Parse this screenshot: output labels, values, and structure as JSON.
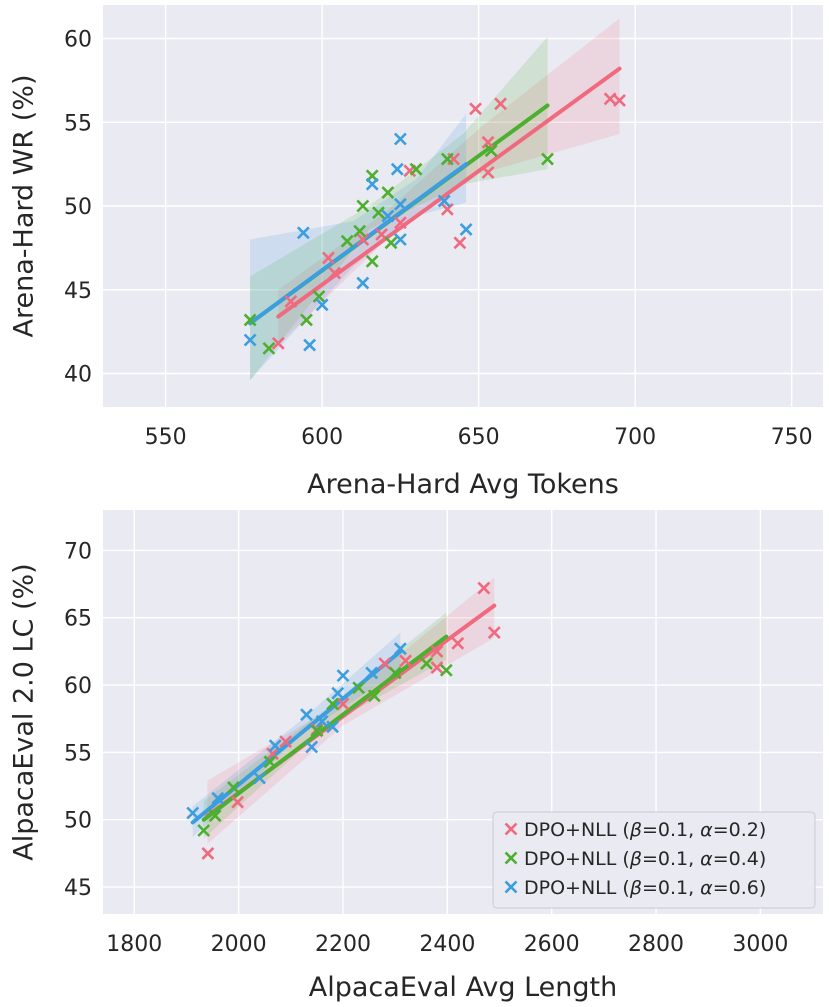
{
  "colors": {
    "pink": "#f0697f",
    "green": "#4daf2e",
    "blue": "#3a9ee0"
  },
  "legend": {
    "placement": "lower-right",
    "entries": [
      {
        "prefix": "DPO+NLL (",
        "beta": "β",
        "mid": "=0.1, ",
        "alpha": "α",
        "suffix": "=0.2)",
        "color": "pink"
      },
      {
        "prefix": "DPO+NLL (",
        "beta": "β",
        "mid": "=0.1, ",
        "alpha": "α",
        "suffix": "=0.4)",
        "color": "green"
      },
      {
        "prefix": "DPO+NLL (",
        "beta": "β",
        "mid": "=0.1, ",
        "alpha": "α",
        "suffix": "=0.6)",
        "color": "blue"
      }
    ]
  },
  "chart_data": [
    {
      "type": "scatter",
      "xlabel": "Arena-Hard Avg Tokens",
      "ylabel": "Arena-Hard WR (%)",
      "xlim": [
        530,
        760
      ],
      "ylim": [
        38,
        62
      ],
      "xticks": [
        550,
        600,
        650,
        700,
        750
      ],
      "yticks": [
        40,
        45,
        50,
        55,
        60
      ],
      "grid": true,
      "series": [
        {
          "color": "pink",
          "points": [
            [
              586,
              41.8
            ],
            [
              590,
              44.3
            ],
            [
              602,
              46.9
            ],
            [
              604,
              46
            ],
            [
              613,
              48
            ],
            [
              619,
              48.3
            ],
            [
              625,
              49
            ],
            [
              628,
              52.1
            ],
            [
              640,
              49.8
            ],
            [
              642,
              52.8
            ],
            [
              644,
              47.8
            ],
            [
              649,
              55.8
            ],
            [
              653,
              52
            ],
            [
              653,
              53.8
            ],
            [
              657,
              56.1
            ],
            [
              692,
              56.4
            ],
            [
              695,
              56.3
            ]
          ],
          "fit": {
            "x0": 586,
            "y0": 43.4,
            "x1": 695,
            "y1": 58.2
          },
          "band_lower": [
            [
              586,
              41.7
            ],
            [
              620,
              47.9
            ],
            [
              650,
              51.9
            ],
            [
              695,
              54.3
            ]
          ],
          "band_upper": [
            [
              586,
              45.0
            ],
            [
              620,
              49.6
            ],
            [
              650,
              54.6
            ],
            [
              695,
              61.2
            ]
          ]
        },
        {
          "color": "green",
          "points": [
            [
              577,
              43.2
            ],
            [
              583,
              41.5
            ],
            [
              595,
              43.2
            ],
            [
              599,
              44.6
            ],
            [
              608,
              47.9
            ],
            [
              612,
              48.5
            ],
            [
              613,
              50
            ],
            [
              616,
              51.8
            ],
            [
              616,
              46.7
            ],
            [
              618,
              49.6
            ],
            [
              621,
              50.8
            ],
            [
              622,
              47.8
            ],
            [
              630,
              52.2
            ],
            [
              640,
              52.8
            ],
            [
              654,
              53.3
            ],
            [
              672,
              52.8
            ]
          ],
          "fit": {
            "x0": 577,
            "y0": 43.0,
            "x1": 672,
            "y1": 56.0
          },
          "band_lower": [
            [
              577,
              39.6
            ],
            [
              615,
              48.6
            ],
            [
              645,
              51.3
            ],
            [
              672,
              52.2
            ]
          ],
          "band_upper": [
            [
              577,
              45.8
            ],
            [
              615,
              50.0
            ],
            [
              645,
              54.3
            ],
            [
              672,
              60.1
            ]
          ]
        },
        {
          "color": "blue",
          "points": [
            [
              577,
              42
            ],
            [
              594,
              48.4
            ],
            [
              596,
              41.7
            ],
            [
              600,
              44.1
            ],
            [
              613,
              45.4
            ],
            [
              616,
              51.3
            ],
            [
              621,
              49.4
            ],
            [
              624,
              52.2
            ],
            [
              625,
              50.1
            ],
            [
              625,
              48
            ],
            [
              625,
              54
            ],
            [
              639,
              50.3
            ],
            [
              646,
              48.6
            ]
          ],
          "fit": {
            "x0": 577,
            "y0": 43.0,
            "x1": 646,
            "y1": 52.5
          },
          "band_lower": [
            [
              577,
              39.6
            ],
            [
              610,
              46.4
            ],
            [
              630,
              49.4
            ],
            [
              646,
              50.2
            ]
          ],
          "band_upper": [
            [
              577,
              48.0
            ],
            [
              610,
              49.1
            ],
            [
              630,
              51.6
            ],
            [
              646,
              55.5
            ]
          ]
        }
      ]
    },
    {
      "type": "scatter",
      "xlabel": "AlpacaEval Avg Length",
      "ylabel": "AlpacaEval 2.0 LC (%)",
      "xlim": [
        1740,
        3120
      ],
      "ylim": [
        43,
        73
      ],
      "xticks": [
        1800,
        2000,
        2200,
        2400,
        2600,
        2800,
        3000
      ],
      "yticks": [
        45,
        50,
        55,
        60,
        65,
        70
      ],
      "grid": true,
      "series": [
        {
          "color": "pink",
          "points": [
            [
              1941,
              47.5
            ],
            [
              1998,
              51.3
            ],
            [
              2065,
              54.9
            ],
            [
              2090,
              55.8
            ],
            [
              2150,
              56.7
            ],
            [
              2200,
              58.6
            ],
            [
              2280,
              61.6
            ],
            [
              2320,
              61.8
            ],
            [
              2380,
              62.5
            ],
            [
              2380,
              61.3
            ],
            [
              2420,
              63.1
            ],
            [
              2470,
              67.2
            ],
            [
              2490,
              63.9
            ]
          ],
          "fit": {
            "x0": 1940,
            "y0": 50.3,
            "x1": 2490,
            "y1": 65.9
          },
          "band_lower": [
            [
              1940,
              48.2
            ],
            [
              2200,
              57.0
            ],
            [
              2490,
              63.5
            ]
          ],
          "band_upper": [
            [
              1940,
              52.9
            ],
            [
              2200,
              58.8
            ],
            [
              2490,
              68.0
            ]
          ]
        },
        {
          "color": "green",
          "points": [
            [
              1933,
              49.2
            ],
            [
              1955,
              50.3
            ],
            [
              1990,
              52.4
            ],
            [
              2060,
              54.3
            ],
            [
              2150,
              56.6
            ],
            [
              2180,
              58.6
            ],
            [
              2230,
              59.8
            ],
            [
              2260,
              59.2
            ],
            [
              2300,
              60.9
            ],
            [
              2360,
              61.6
            ],
            [
              2398,
              61.1
            ]
          ],
          "fit": {
            "x0": 1933,
            "y0": 50.0,
            "x1": 2398,
            "y1": 63.6
          },
          "band_lower": [
            [
              1933,
              48.6
            ],
            [
              2170,
              57.0
            ],
            [
              2398,
              61.9
            ]
          ],
          "band_upper": [
            [
              1933,
              51.4
            ],
            [
              2170,
              58.3
            ],
            [
              2398,
              65.4
            ]
          ]
        },
        {
          "color": "blue",
          "points": [
            [
              1912,
              50.5
            ],
            [
              1960,
              51.6
            ],
            [
              2040,
              53.1
            ],
            [
              2070,
              55.5
            ],
            [
              2130,
              57.8
            ],
            [
              2140,
              55.4
            ],
            [
              2160,
              57.3
            ],
            [
              2180,
              56.9
            ],
            [
              2190,
              59.4
            ],
            [
              2200,
              60.7
            ],
            [
              2255,
              60.9
            ],
            [
              2310,
              62.7
            ]
          ],
          "fit": {
            "x0": 1912,
            "y0": 49.8,
            "x1": 2310,
            "y1": 62.5
          },
          "band_lower": [
            [
              1912,
              48.7
            ],
            [
              2120,
              56.3
            ],
            [
              2310,
              61.1
            ]
          ],
          "band_upper": [
            [
              1912,
              51.0
            ],
            [
              2120,
              57.4
            ],
            [
              2310,
              63.9
            ]
          ]
        }
      ]
    }
  ]
}
